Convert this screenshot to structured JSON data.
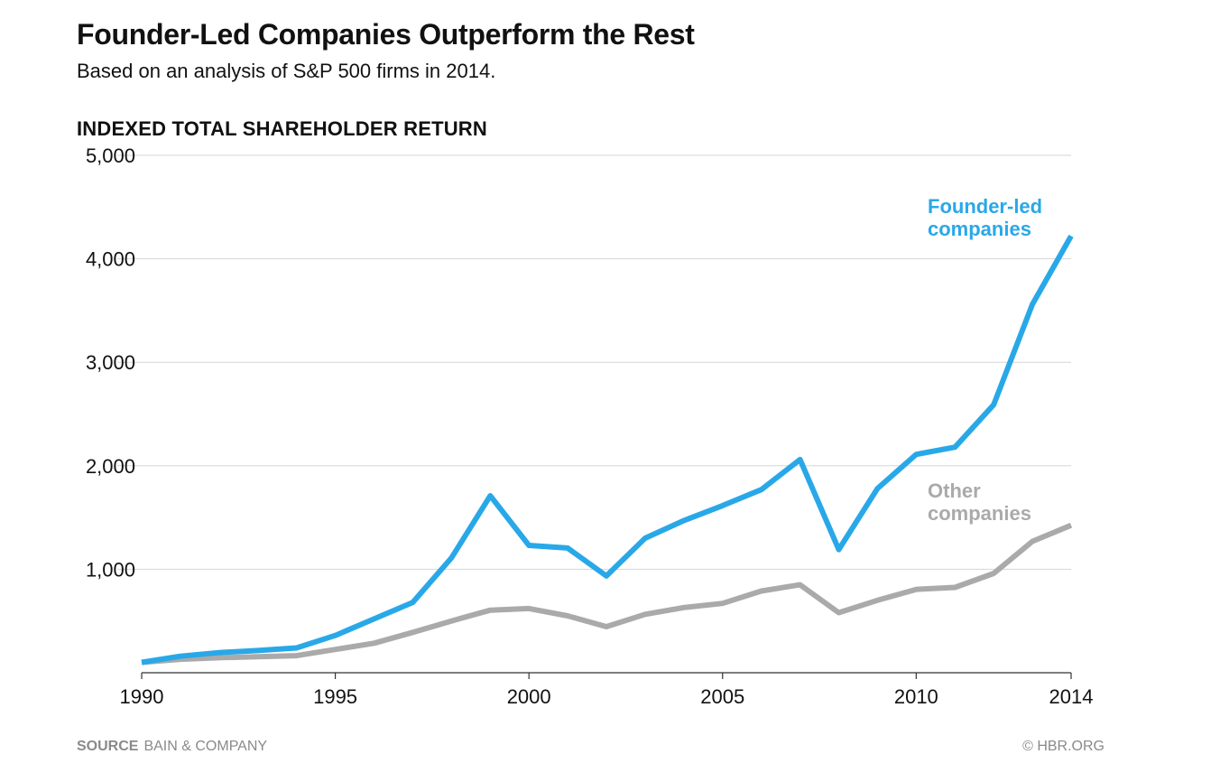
{
  "header": {
    "title": "Founder-Led Companies Outperform the Rest",
    "subtitle": "Based on an analysis of S&P 500 firms in 2014.",
    "ylabel": "INDEXED TOTAL SHAREHOLDER RETURN"
  },
  "footer": {
    "source_key": "SOURCE",
    "source_value": "BAIN & COMPANY",
    "credit": "© HBR.ORG"
  },
  "colors": {
    "founder": "#29a8e8",
    "other": "#aaaaaa",
    "grid": "#d6d6d6",
    "axis": "#333333"
  },
  "chart_data": {
    "type": "line",
    "title": "Founder-Led Companies Outperform the Rest",
    "subtitle": "Based on an analysis of S&P 500 firms in 2014.",
    "xlabel": "",
    "ylabel": "INDEXED TOTAL SHAREHOLDER RETURN",
    "xlim": [
      1990,
      2014
    ],
    "ylim": [
      0,
      5000
    ],
    "x_ticks": [
      1990,
      1995,
      2000,
      2005,
      2010,
      2014
    ],
    "y_ticks": [
      1000,
      2000,
      3000,
      4000,
      5000
    ],
    "y_tick_labels": [
      "1,000",
      "2,000",
      "3,000",
      "4,000",
      "5,000"
    ],
    "grid": true,
    "legend": "inline labels at right",
    "x": [
      1990,
      1991,
      1992,
      1993,
      1994,
      1995,
      1996,
      1997,
      1998,
      1999,
      2000,
      2001,
      2002,
      2003,
      2004,
      2005,
      2006,
      2007,
      2008,
      2009,
      2010,
      2011,
      2012,
      2013,
      2014
    ],
    "series": [
      {
        "name": "Founder-led companies",
        "label_lines": [
          "Founder-led",
          "companies"
        ],
        "values": [
          100,
          160,
          195,
          215,
          240,
          360,
          520,
          680,
          1110,
          1710,
          1230,
          1205,
          935,
          1300,
          1470,
          1615,
          1770,
          2060,
          1190,
          1780,
          2110,
          2180,
          2590,
          3560,
          4220
        ]
      },
      {
        "name": "Other companies",
        "label_lines": [
          "Other",
          "companies"
        ],
        "values": [
          100,
          130,
          145,
          155,
          165,
          225,
          285,
          390,
          500,
          605,
          620,
          550,
          445,
          565,
          630,
          670,
          790,
          850,
          580,
          700,
          805,
          825,
          960,
          1270,
          1425
        ]
      }
    ]
  }
}
